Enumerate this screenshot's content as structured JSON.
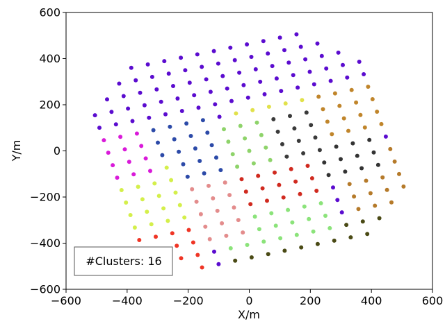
{
  "chart_data": {
    "type": "scatter",
    "title": "",
    "xlabel": "X/m",
    "ylabel": "Y/m",
    "xlim": [
      -600,
      600
    ],
    "ylim": [
      -600,
      600
    ],
    "xticks": [
      -600,
      -400,
      -200,
      0,
      200,
      400,
      600
    ],
    "yticks": [
      -600,
      -400,
      -200,
      0,
      200,
      400,
      600
    ],
    "xtick_labels": [
      "−600",
      "−400",
      "−200",
      "0",
      "200",
      "400",
      "600"
    ],
    "ytick_labels": [
      "−600",
      "−400",
      "−200",
      "0",
      "200",
      "400",
      "600"
    ],
    "grid": false,
    "legend_text": "#Clusters: 16",
    "legend_location": "lower-left",
    "grid_model": {
      "rotation_deg": 15,
      "spacing": 56,
      "center": [
        0,
        0
      ],
      "i_range": [
        -9,
        9
      ],
      "j_range": [
        -9,
        9
      ],
      "boundary": [
        [
          -530,
          160
        ],
        [
          -375,
          410
        ],
        [
          180,
          520
        ],
        [
          250,
          450
        ],
        [
          420,
          380
        ],
        [
          520,
          -170
        ],
        [
          370,
          -400
        ],
        [
          -180,
          -520
        ],
        [
          -420,
          -370
        ],
        [
          -520,
          120
        ]
      ]
    },
    "clusters": [
      {
        "id": 1,
        "color": "#5b0ccf",
        "i_range": [
          -9,
          9
        ],
        "j_range": [
          4,
          9
        ]
      },
      {
        "id": 2,
        "color": "#d91ad9",
        "i_range": [
          -9,
          -6
        ],
        "j_range": [
          0,
          4
        ]
      },
      {
        "id": 3,
        "color": "#d4ef4a",
        "i_range": [
          -9,
          -5
        ],
        "j_range": [
          -4,
          0
        ]
      },
      {
        "id": 4,
        "color": "#ef3525",
        "i_range": [
          -9,
          -5
        ],
        "j_range": [
          -9,
          -4
        ]
      },
      {
        "id": 5,
        "color": "#e38c8c",
        "i_range": [
          -5,
          -2
        ],
        "j_range": [
          -6,
          -2
        ]
      },
      {
        "id": 6,
        "color": "#2c4aa8",
        "i_range": [
          -5,
          -2
        ],
        "j_range": [
          -2,
          4
        ]
      },
      {
        "id": 7,
        "color": "#8ed36a",
        "i_range": [
          -2,
          1
        ],
        "j_range": [
          -1,
          2
        ]
      },
      {
        "id": 8,
        "color": "#3a3a3a",
        "i_range": [
          1,
          4
        ],
        "j_range": [
          -1,
          2
        ]
      },
      {
        "id": 9,
        "color": "#c0852b",
        "i_range": [
          5,
          9
        ],
        "j_range": [
          0,
          4
        ]
      },
      {
        "id": 10,
        "color": "#333333",
        "i_range": [
          4,
          7
        ],
        "j_range": [
          -3,
          0
        ]
      },
      {
        "id": 11,
        "color": "#d02a1f",
        "i_range": [
          -2,
          3
        ],
        "j_range": [
          -4,
          -1
        ]
      },
      {
        "id": 12,
        "color": "#8be37a",
        "i_range": [
          -3,
          3
        ],
        "j_range": [
          -7,
          -4
        ]
      },
      {
        "id": 13,
        "color": "#4a4a15",
        "i_range": [
          -3,
          6
        ],
        "j_range": [
          -9,
          -7
        ]
      },
      {
        "id": 14,
        "color": "#b57a2a",
        "i_range": [
          5,
          9
        ],
        "j_range": [
          -6,
          -2
        ]
      },
      {
        "id": 15,
        "color": "#2f61b8",
        "i_range": [
          6,
          9
        ],
        "j_range": [
          -9,
          -6
        ]
      },
      {
        "id": 16,
        "color": "#e1e14a",
        "i_range": [
          0,
          5
        ],
        "j_range": [
          2,
          4
        ]
      }
    ]
  }
}
